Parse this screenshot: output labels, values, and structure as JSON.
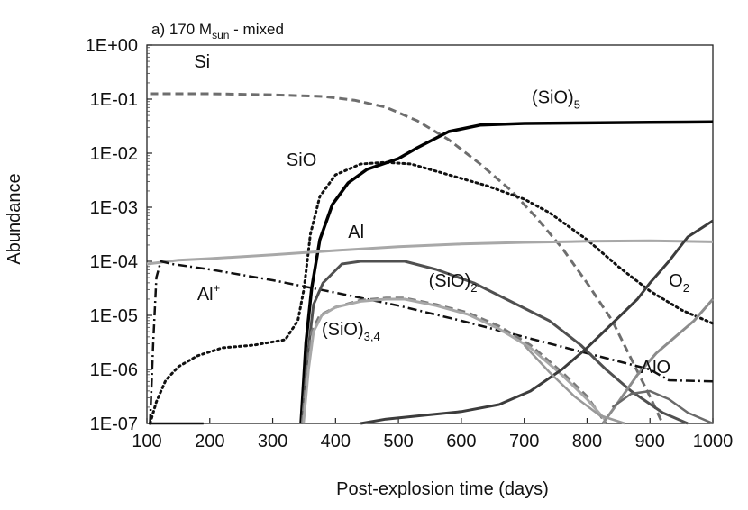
{
  "chart_data": {
    "type": "line",
    "title": "a) 170 M",
    "title_subscript": "sun",
    "title_suffix": " - mixed",
    "xlabel": "Post-explosion time (days)",
    "ylabel": "Abundance",
    "xlim": [
      100,
      1000
    ],
    "ylim_log10": [
      -7,
      0
    ],
    "yscale": "log",
    "grid": false,
    "x_ticks": [
      100,
      200,
      300,
      400,
      500,
      600,
      700,
      800,
      900,
      1000
    ],
    "x_tick_labels": [
      "100",
      "200",
      "300",
      "400",
      "500",
      "600",
      "700",
      "800",
      "900",
      "1000"
    ],
    "y_ticks_log10": [
      0,
      -1,
      -2,
      -3,
      -4,
      -5,
      -6,
      -7
    ],
    "y_tick_labels": [
      "1E+00",
      "1E-01",
      "1E-02",
      "1E-03",
      "1E-04",
      "1E-05",
      "1E-06",
      "1E-07"
    ],
    "series": [
      {
        "name": "Si",
        "label_text": "Si",
        "label_sub": "",
        "label_sup": "",
        "color": "#6e6e6e",
        "style": "dashed",
        "width": 3,
        "label_at": [
          175,
          -0.3
        ],
        "points": [
          [
            105,
            -0.9
          ],
          [
            150,
            -0.9
          ],
          [
            200,
            -0.9
          ],
          [
            300,
            -0.92
          ],
          [
            380,
            -0.95
          ],
          [
            430,
            -1.02
          ],
          [
            480,
            -1.15
          ],
          [
            530,
            -1.4
          ],
          [
            580,
            -1.75
          ],
          [
            630,
            -2.2
          ],
          [
            680,
            -2.7
          ],
          [
            720,
            -3.2
          ],
          [
            760,
            -3.75
          ],
          [
            800,
            -4.4
          ],
          [
            840,
            -5.1
          ],
          [
            870,
            -5.8
          ],
          [
            900,
            -6.5
          ],
          [
            920,
            -7.0
          ]
        ]
      },
      {
        "name": "SiO",
        "label_text": "SiO",
        "label_sub": "",
        "label_sup": "",
        "color": "#111111",
        "style": "dotted",
        "width": 3,
        "label_at": [
          322,
          -2.12
        ],
        "points": [
          [
            105,
            -7.0
          ],
          [
            115,
            -6.6
          ],
          [
            130,
            -6.2
          ],
          [
            150,
            -5.95
          ],
          [
            180,
            -5.75
          ],
          [
            220,
            -5.6
          ],
          [
            270,
            -5.55
          ],
          [
            320,
            -5.45
          ],
          [
            340,
            -5.1
          ],
          [
            350,
            -4.5
          ],
          [
            360,
            -3.5
          ],
          [
            375,
            -2.8
          ],
          [
            400,
            -2.4
          ],
          [
            440,
            -2.2
          ],
          [
            480,
            -2.17
          ],
          [
            520,
            -2.2
          ],
          [
            580,
            -2.4
          ],
          [
            640,
            -2.6
          ],
          [
            700,
            -2.85
          ],
          [
            740,
            -3.1
          ],
          [
            800,
            -3.6
          ],
          [
            850,
            -4.1
          ],
          [
            900,
            -4.55
          ],
          [
            950,
            -4.9
          ],
          [
            1000,
            -5.15
          ]
        ]
      },
      {
        "name": "(SiO)5",
        "label_text": "(SiO)",
        "label_sub": "5",
        "label_sup": "",
        "color": "#000000",
        "style": "solid",
        "width": 3.5,
        "label_at": [
          712,
          -0.96
        ],
        "points": [
          [
            345,
            -7.0
          ],
          [
            353,
            -5.5
          ],
          [
            362,
            -4.5
          ],
          [
            375,
            -3.6
          ],
          [
            395,
            -2.95
          ],
          [
            420,
            -2.55
          ],
          [
            450,
            -2.3
          ],
          [
            500,
            -2.1
          ],
          [
            530,
            -1.9
          ],
          [
            580,
            -1.6
          ],
          [
            630,
            -1.48
          ],
          [
            700,
            -1.45
          ],
          [
            800,
            -1.44
          ],
          [
            900,
            -1.43
          ],
          [
            1000,
            -1.42
          ]
        ]
      },
      {
        "name": "Al",
        "label_text": "Al",
        "label_sub": "",
        "label_sup": "",
        "color": "#a8a8a8",
        "style": "solid",
        "width": 3,
        "label_at": [
          420,
          -3.45
        ],
        "points": [
          [
            100,
            -4.05
          ],
          [
            150,
            -3.98
          ],
          [
            200,
            -3.95
          ],
          [
            300,
            -3.88
          ],
          [
            400,
            -3.8
          ],
          [
            500,
            -3.73
          ],
          [
            600,
            -3.68
          ],
          [
            700,
            -3.65
          ],
          [
            800,
            -3.63
          ],
          [
            900,
            -3.62
          ],
          [
            1000,
            -3.64
          ]
        ]
      },
      {
        "name": "Al+",
        "label_text": "Al",
        "label_sub": "",
        "label_sup": "+",
        "color": "#111111",
        "style": "dashdot",
        "width": 2.5,
        "label_at": [
          180,
          -4.6
        ],
        "points": [
          [
            105,
            -7.0
          ],
          [
            110,
            -5.5
          ],
          [
            115,
            -4.3
          ],
          [
            122,
            -4.0
          ],
          [
            140,
            -4.05
          ],
          [
            200,
            -4.15
          ],
          [
            300,
            -4.35
          ],
          [
            400,
            -4.58
          ],
          [
            500,
            -4.82
          ],
          [
            600,
            -5.1
          ],
          [
            700,
            -5.4
          ],
          [
            800,
            -5.7
          ],
          [
            900,
            -6.0
          ],
          [
            930,
            -6.2
          ],
          [
            1000,
            -6.22
          ]
        ]
      },
      {
        "name": "(SiO)2",
        "label_text": "(SiO)",
        "label_sub": "2",
        "label_sup": "",
        "color": "#505050",
        "style": "solid",
        "width": 3,
        "label_at": [
          548,
          -4.35
        ],
        "points": [
          [
            347,
            -7.0
          ],
          [
            355,
            -5.8
          ],
          [
            365,
            -4.8
          ],
          [
            380,
            -4.4
          ],
          [
            410,
            -4.05
          ],
          [
            440,
            -4.0
          ],
          [
            480,
            -4.0
          ],
          [
            510,
            -4.0
          ],
          [
            560,
            -4.15
          ],
          [
            620,
            -4.4
          ],
          [
            680,
            -4.75
          ],
          [
            740,
            -5.1
          ],
          [
            790,
            -5.55
          ],
          [
            830,
            -6.0
          ],
          [
            870,
            -6.4
          ],
          [
            920,
            -6.8
          ],
          [
            960,
            -7.0
          ]
        ]
      },
      {
        "name": "(SiO)3,4",
        "label_text": "(SiO)",
        "label_sub": "3,4",
        "label_sup": "",
        "color": "#7a7a7a",
        "style": "dashed",
        "width": 3,
        "label_at": [
          378,
          -5.25
        ],
        "points": [
          [
            347,
            -7.0
          ],
          [
            355,
            -6.0
          ],
          [
            362,
            -5.3
          ],
          [
            375,
            -5.0
          ],
          [
            400,
            -4.85
          ],
          [
            440,
            -4.72
          ],
          [
            480,
            -4.68
          ],
          [
            510,
            -4.68
          ],
          [
            560,
            -4.8
          ],
          [
            610,
            -4.95
          ],
          [
            660,
            -5.2
          ],
          [
            710,
            -5.55
          ],
          [
            760,
            -6.05
          ],
          [
            800,
            -6.5
          ],
          [
            830,
            -7.0
          ]
        ]
      },
      {
        "name": "(SiO)3,4 (solid)",
        "label_text": "",
        "label_sub": "",
        "label_sup": "",
        "color": "#a8a8a8",
        "style": "solid",
        "width": 3,
        "label_at": [
          0,
          0
        ],
        "points": [
          [
            349,
            -7.0
          ],
          [
            357,
            -6.0
          ],
          [
            365,
            -5.3
          ],
          [
            378,
            -5.0
          ],
          [
            400,
            -4.85
          ],
          [
            440,
            -4.74
          ],
          [
            480,
            -4.7
          ],
          [
            510,
            -4.7
          ],
          [
            560,
            -4.82
          ],
          [
            610,
            -4.98
          ],
          [
            660,
            -5.25
          ],
          [
            710,
            -5.6
          ],
          [
            760,
            -6.1
          ],
          [
            800,
            -6.55
          ],
          [
            830,
            -6.95
          ]
        ]
      },
      {
        "name": "O2",
        "label_text": "O",
        "label_sub": "2",
        "label_sup": "",
        "color": "#3c3c3c",
        "style": "solid",
        "width": 3,
        "label_at": [
          930,
          -4.35
        ],
        "points": [
          [
            440,
            -7.0
          ],
          [
            480,
            -6.92
          ],
          [
            540,
            -6.85
          ],
          [
            600,
            -6.78
          ],
          [
            660,
            -6.65
          ],
          [
            710,
            -6.4
          ],
          [
            760,
            -6.0
          ],
          [
            800,
            -5.6
          ],
          [
            840,
            -5.15
          ],
          [
            880,
            -4.7
          ],
          [
            900,
            -4.4
          ],
          [
            930,
            -4.0
          ],
          [
            960,
            -3.55
          ],
          [
            1000,
            -3.25
          ]
        ]
      },
      {
        "name": "AlO",
        "label_text": "AlO",
        "label_sub": "",
        "label_sup": "",
        "color": "#8c8c8c",
        "style": "solid",
        "width": 3,
        "label_at": [
          885,
          -5.95
        ],
        "points": [
          [
            825,
            -7.0
          ],
          [
            850,
            -6.6
          ],
          [
            880,
            -6.1
          ],
          [
            910,
            -5.7
          ],
          [
            940,
            -5.4
          ],
          [
            970,
            -5.1
          ],
          [
            1000,
            -4.7
          ]
        ]
      },
      {
        "name": "low-curve-1",
        "label_text": "",
        "label_sub": "",
        "label_sup": "",
        "color": "#6a6a6a",
        "style": "solid",
        "width": 2.5,
        "label_at": [
          0,
          0
        ],
        "points": [
          [
            840,
            -6.7
          ],
          [
            870,
            -6.45
          ],
          [
            900,
            -6.4
          ],
          [
            930,
            -6.55
          ],
          [
            960,
            -6.8
          ],
          [
            990,
            -6.95
          ],
          [
            1000,
            -7.0
          ]
        ]
      },
      {
        "name": "low-curve-2",
        "label_text": "",
        "label_sub": "",
        "label_sup": "",
        "color": "#999999",
        "style": "solid",
        "width": 2.5,
        "label_at": [
          0,
          0
        ],
        "points": [
          [
            700,
            -5.55
          ],
          [
            740,
            -6.05
          ],
          [
            780,
            -6.5
          ],
          [
            820,
            -6.85
          ],
          [
            860,
            -7.0
          ]
        ]
      },
      {
        "name": "base-Al",
        "label_text": "",
        "label_sub": "",
        "label_sup": "",
        "color": "#111111",
        "style": "solid",
        "width": 2.5,
        "label_at": [
          0,
          0
        ],
        "points": [
          [
            103,
            -7.0
          ],
          [
            160,
            -7.0
          ],
          [
            190,
            -7.0
          ]
        ]
      }
    ]
  }
}
